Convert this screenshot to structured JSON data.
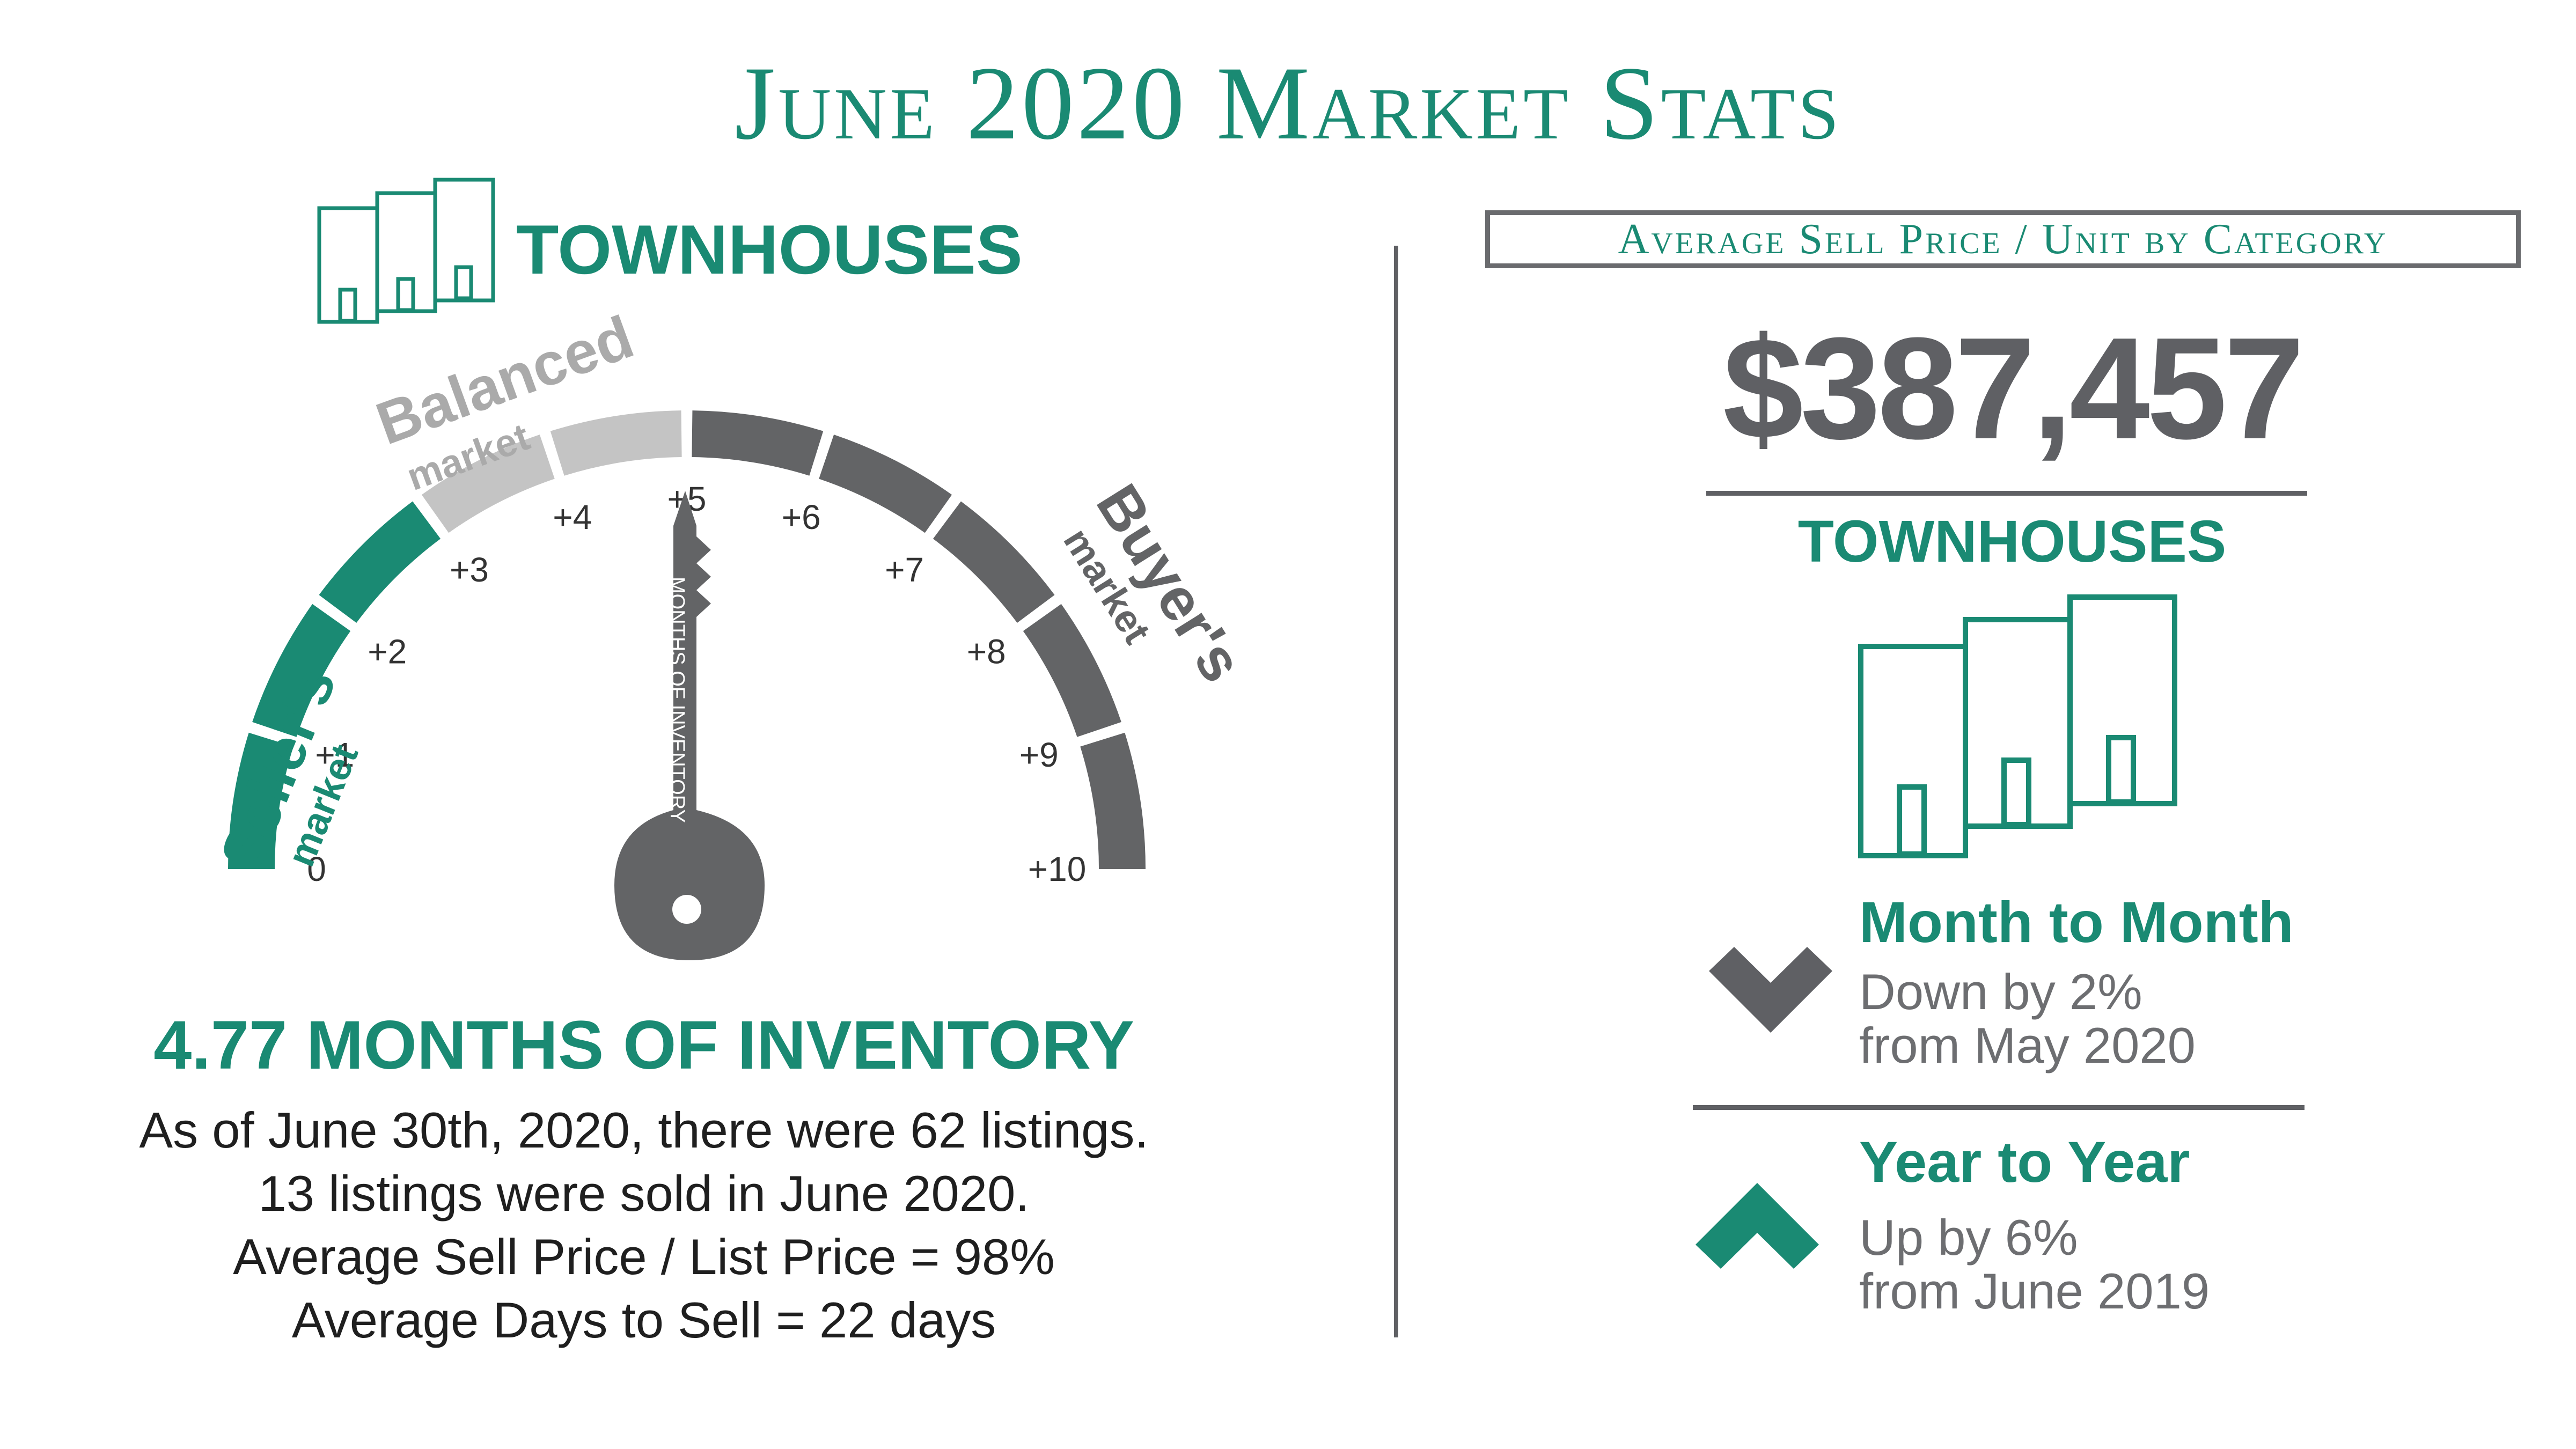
{
  "title": "June 2020 Market Stats",
  "left": {
    "category": "TOWNHOUSES",
    "category_icon": "townhouse-buildings-icon",
    "gauge": {
      "labels": {
        "seller": "Seller's",
        "seller_sub": "market",
        "balanced": "Balanced",
        "balanced_sub": "market",
        "buyer": "Buyer's",
        "buyer_sub": "market"
      },
      "ticks": [
        "0",
        "+1",
        "+2",
        "+3",
        "+4",
        "+5",
        "+6",
        "+7",
        "+8",
        "+9",
        "+10"
      ],
      "value": 4.77,
      "min": 0,
      "max": 10,
      "key_value": "4.77M",
      "key_label": "MONTHS OF INVENTORY",
      "key_icon": "key-icon",
      "colors": {
        "seller": "#1a8a73",
        "balanced": "#c4c4c4",
        "buyer": "#636466"
      }
    },
    "inventory_headline": "4.77 MONTHS OF INVENTORY",
    "lines": [
      "As of June 30th, 2020, there were 62 listings.",
      "13 listings were sold in June 2020.",
      "Average Sell Price / List Price = 98%",
      "Average Days to Sell = 22 days"
    ]
  },
  "right": {
    "box_label": "Average Sell Price / Unit by Category",
    "price": "$387,457",
    "category": "TOWNHOUSES",
    "category_icon": "townhouse-buildings-icon",
    "month": {
      "title": "Month to Month",
      "line1": "Down by 2%",
      "line2": "from May 2020",
      "icon": "chevron-down-icon"
    },
    "year": {
      "title": "Year to Year",
      "line1": "Up by 6%",
      "line2": "from June 2019",
      "icon": "chevron-up-icon"
    }
  },
  "colors": {
    "accent": "#1a8a73",
    "gray": "#5f6064",
    "light_gray": "#c4c4c4"
  }
}
